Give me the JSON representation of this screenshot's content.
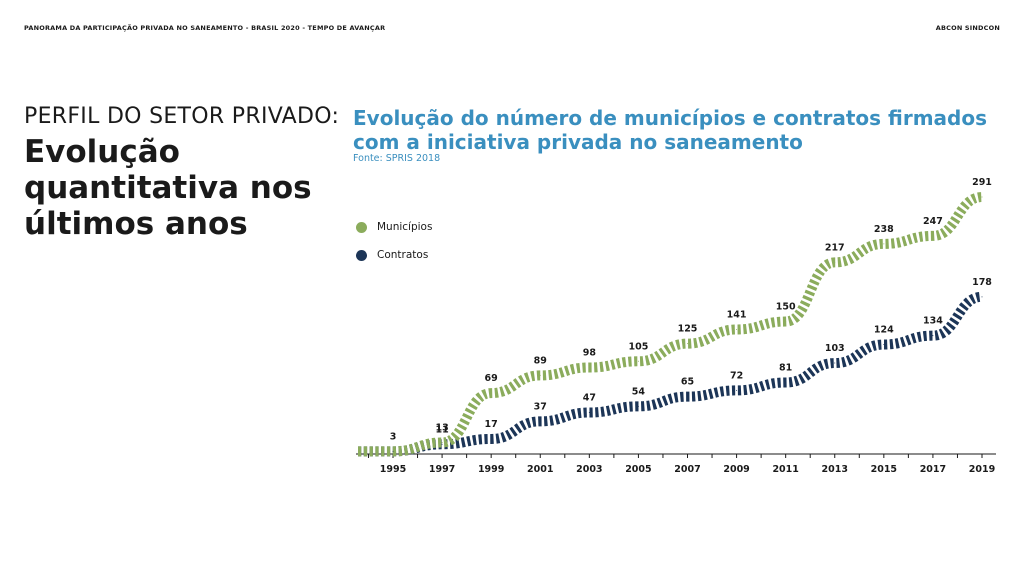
{
  "header": {
    "left": "PANORAMA DA PARTICIPAÇÃO PRIVADA NO SANEAMENTO - BRASIL 2020 - TEMPO DE AVANÇAR",
    "right": "ABCON SINDCON"
  },
  "section": {
    "label": "PERFIL DO SETOR PRIVADO:",
    "title": "Evolução quantitativa nos últimos anos"
  },
  "chart_data": {
    "type": "line",
    "title": "Evolução do número de municípios e contratos firmados com a iniciativa privada no saneamento",
    "source": "Fonte: SPRIS 2018",
    "legend_position": "left",
    "x_ticks": [
      "1995",
      "1997",
      "1999",
      "2001",
      "2003",
      "2005",
      "2007",
      "2009",
      "2011",
      "2013",
      "2015",
      "2017",
      "2019"
    ],
    "ylim": [
      0,
      300
    ],
    "series": [
      {
        "name": "Municípios",
        "color": "#8bac5c",
        "points": [
          {
            "x": 1995,
            "y": 3,
            "label": "3"
          },
          {
            "x": 1997,
            "y": 13,
            "label": "13"
          },
          {
            "x": 1999,
            "y": 69,
            "label": "69"
          },
          {
            "x": 2001,
            "y": 89,
            "label": "89"
          },
          {
            "x": 2003,
            "y": 98,
            "label": "98"
          },
          {
            "x": 2005,
            "y": 105,
            "label": "105"
          },
          {
            "x": 2007,
            "y": 125,
            "label": "125"
          },
          {
            "x": 2009,
            "y": 141,
            "label": "141"
          },
          {
            "x": 2011,
            "y": 150,
            "label": "150"
          },
          {
            "x": 2013,
            "y": 217,
            "label": "217"
          },
          {
            "x": 2015,
            "y": 238,
            "label": "238"
          },
          {
            "x": 2017,
            "y": 247,
            "label": "247"
          },
          {
            "x": 2019,
            "y": 291,
            "label": "291"
          }
        ]
      },
      {
        "name": "Contratos",
        "color": "#1c3557",
        "points": [
          {
            "x": 1995,
            "y": 3,
            "label": ""
          },
          {
            "x": 1997,
            "y": 11,
            "label": "11"
          },
          {
            "x": 1999,
            "y": 17,
            "label": "17"
          },
          {
            "x": 2001,
            "y": 37,
            "label": "37"
          },
          {
            "x": 2003,
            "y": 47,
            "label": "47"
          },
          {
            "x": 2005,
            "y": 54,
            "label": "54"
          },
          {
            "x": 2007,
            "y": 65,
            "label": "65"
          },
          {
            "x": 2009,
            "y": 72,
            "label": "72"
          },
          {
            "x": 2011,
            "y": 81,
            "label": "81"
          },
          {
            "x": 2013,
            "y": 103,
            "label": "103"
          },
          {
            "x": 2015,
            "y": 124,
            "label": "124"
          },
          {
            "x": 2017,
            "y": 134,
            "label": "134"
          },
          {
            "x": 2019,
            "y": 178,
            "label": "178"
          }
        ]
      }
    ]
  }
}
